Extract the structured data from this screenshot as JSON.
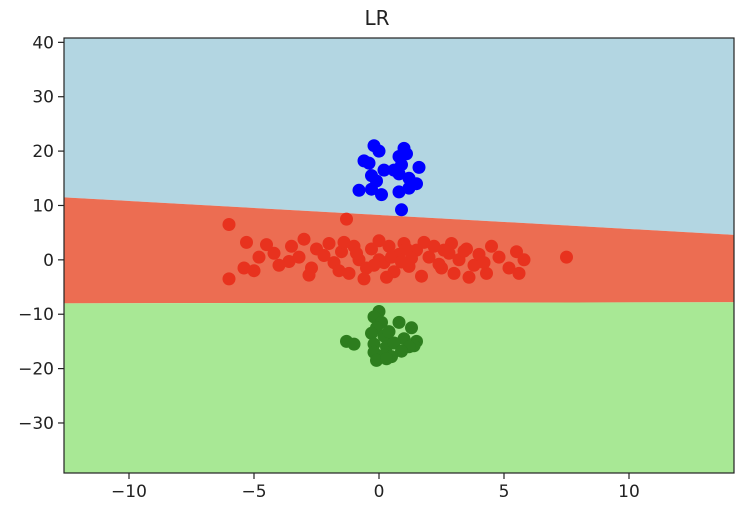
{
  "chart_data": {
    "type": "scatter",
    "title": "LR",
    "xlabel": "",
    "ylabel": "",
    "xlim": [
      -12.6,
      14.2
    ],
    "ylim": [
      -39.2,
      40.8
    ],
    "xticks": [
      -10,
      -5,
      0,
      5,
      10
    ],
    "yticks": [
      -30,
      -20,
      -10,
      0,
      10,
      20,
      30,
      40
    ],
    "xtick_labels": [
      "−10",
      "−5",
      "0",
      "5",
      "10"
    ],
    "ytick_labels": [
      "−30",
      "−20",
      "−10",
      "0",
      "10",
      "20",
      "30",
      "40"
    ],
    "grid": false,
    "regions": [
      {
        "class": "blue",
        "color": "#b3d6e2"
      },
      {
        "class": "red",
        "color": "#ec6d52"
      },
      {
        "class": "green",
        "color": "#a8e895"
      }
    ],
    "boundaries": {
      "upper": [
        [
          -12.6,
          11.5
        ],
        [
          14.2,
          4.6
        ]
      ],
      "lower": [
        [
          -12.6,
          -8.0
        ],
        [
          14.2,
          -7.8
        ]
      ]
    },
    "series": [
      {
        "color": "#0000ff",
        "points": [
          [
            -0.2,
            21.0
          ],
          [
            0.0,
            20.0
          ],
          [
            1.0,
            20.5
          ],
          [
            1.1,
            19.5
          ],
          [
            0.8,
            19.0
          ],
          [
            -0.6,
            18.2
          ],
          [
            -0.4,
            17.8
          ],
          [
            0.9,
            17.5
          ],
          [
            1.6,
            17.0
          ],
          [
            0.2,
            16.5
          ],
          [
            0.8,
            15.8
          ],
          [
            1.2,
            15.0
          ],
          [
            -0.1,
            14.5
          ],
          [
            1.5,
            14.0
          ],
          [
            1.2,
            13.2
          ],
          [
            -0.8,
            12.8
          ],
          [
            -0.3,
            13.0
          ],
          [
            0.8,
            12.5
          ],
          [
            0.1,
            12.0
          ],
          [
            0.9,
            9.2
          ],
          [
            0.6,
            16.5
          ],
          [
            -0.3,
            15.5
          ]
        ]
      },
      {
        "color": "#e8321e",
        "points": [
          [
            -6.0,
            6.5
          ],
          [
            -1.3,
            7.5
          ],
          [
            7.5,
            0.5
          ],
          [
            -6.0,
            -3.5
          ],
          [
            -5.4,
            -1.5
          ],
          [
            -5.0,
            -2.0
          ],
          [
            -5.3,
            3.2
          ],
          [
            -4.8,
            0.5
          ],
          [
            -4.2,
            1.2
          ],
          [
            -3.5,
            2.5
          ],
          [
            -4.5,
            2.8
          ],
          [
            -3.0,
            3.8
          ],
          [
            -3.2,
            0.5
          ],
          [
            -2.5,
            2.0
          ],
          [
            -2.7,
            -1.5
          ],
          [
            -2.0,
            3.0
          ],
          [
            -1.8,
            -0.5
          ],
          [
            -1.5,
            1.5
          ],
          [
            -1.0,
            2.5
          ],
          [
            -1.2,
            -2.5
          ],
          [
            -0.8,
            0.0
          ],
          [
            -0.5,
            -1.5
          ],
          [
            -0.3,
            2.0
          ],
          [
            -0.6,
            -3.5
          ],
          [
            0.0,
            3.5
          ],
          [
            0.2,
            -0.5
          ],
          [
            0.4,
            2.5
          ],
          [
            0.6,
            -2.2
          ],
          [
            0.8,
            1.0
          ],
          [
            1.0,
            3.0
          ],
          [
            1.2,
            -1.2
          ],
          [
            1.5,
            1.8
          ],
          [
            1.7,
            -3.0
          ],
          [
            2.0,
            0.5
          ],
          [
            2.2,
            2.5
          ],
          [
            2.5,
            -1.5
          ],
          [
            2.8,
            1.2
          ],
          [
            3.0,
            -2.5
          ],
          [
            3.2,
            0.0
          ],
          [
            3.5,
            2.0
          ],
          [
            3.8,
            -1.0
          ],
          [
            4.0,
            1.0
          ],
          [
            4.3,
            -2.5
          ],
          [
            4.5,
            2.5
          ],
          [
            4.8,
            0.5
          ],
          [
            5.2,
            -1.5
          ],
          [
            5.5,
            1.5
          ],
          [
            5.6,
            -2.5
          ],
          [
            5.8,
            0.0
          ],
          [
            -2.2,
            0.8
          ],
          [
            -1.6,
            -2.0
          ],
          [
            0.0,
            0.0
          ],
          [
            0.5,
            0.5
          ],
          [
            1.3,
            0.3
          ],
          [
            2.4,
            -0.8
          ],
          [
            3.4,
            1.6
          ],
          [
            -0.2,
            -1.0
          ],
          [
            0.9,
            -0.4
          ],
          [
            -3.6,
            -0.3
          ],
          [
            4.2,
            -0.5
          ],
          [
            1.8,
            3.2
          ],
          [
            -1.4,
            3.2
          ],
          [
            2.9,
            3.0
          ],
          [
            -2.8,
            -2.8
          ],
          [
            0.3,
            -3.2
          ],
          [
            -4.0,
            -1.0
          ],
          [
            3.6,
            -3.2
          ],
          [
            1.1,
            2.0
          ],
          [
            -0.9,
            1.2
          ],
          [
            2.6,
            1.8
          ]
        ]
      },
      {
        "color": "#2d7d1e",
        "points": [
          [
            0.0,
            -9.5
          ],
          [
            -0.2,
            -10.5
          ],
          [
            0.1,
            -11.5
          ],
          [
            -0.1,
            -12.5
          ],
          [
            0.8,
            -11.5
          ],
          [
            1.3,
            -12.5
          ],
          [
            -0.3,
            -13.5
          ],
          [
            0.2,
            -14.0
          ],
          [
            0.4,
            -13.2
          ],
          [
            1.0,
            -14.5
          ],
          [
            1.5,
            -15.0
          ],
          [
            -1.3,
            -15.0
          ],
          [
            -1.0,
            -15.5
          ],
          [
            -0.2,
            -15.5
          ],
          [
            0.3,
            -16.0
          ],
          [
            0.6,
            -15.3
          ],
          [
            1.4,
            -15.8
          ],
          [
            1.2,
            -16.0
          ],
          [
            0.9,
            -16.8
          ],
          [
            -0.2,
            -17.0
          ],
          [
            0.2,
            -17.5
          ],
          [
            0.5,
            -17.8
          ],
          [
            -0.1,
            -18.5
          ],
          [
            0.3,
            -18.2
          ]
        ]
      }
    ]
  }
}
